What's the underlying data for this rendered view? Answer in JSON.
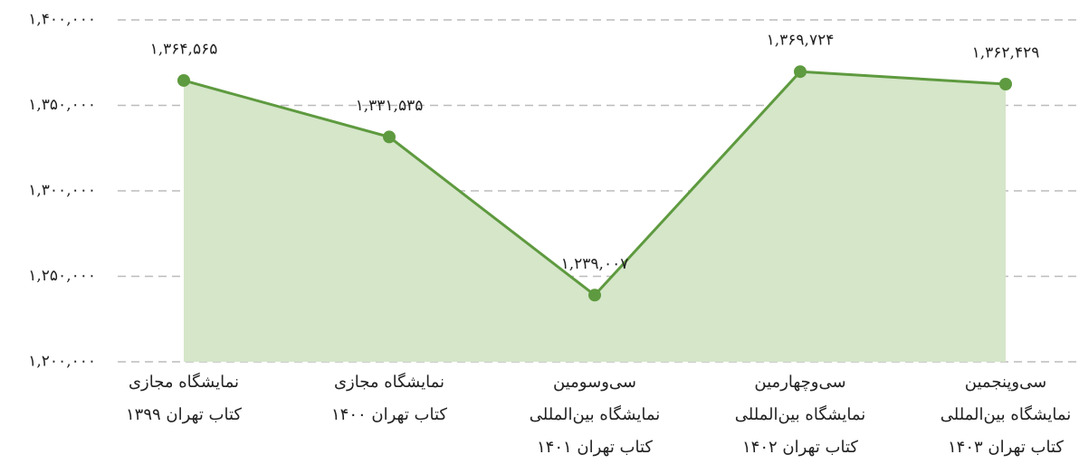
{
  "chart_data": {
    "type": "area",
    "categories": [
      "نمایشگاه مجازی\nکتاب تهران ۱۳۹۹",
      "نمایشگاه مجازی\nکتاب تهران ۱۴۰۰",
      "سی‌وسومین\nنمایشگاه بین‌المللی\nکتاب تهران ۱۴۰۱",
      "سی‌وچهارمین\nنمایشگاه بین‌المللی\nکتاب تهران ۱۴۰۲",
      "سی‌وپنجمین\nنمایشگاه بین‌المللی\nکتاب تهران ۱۴۰۳"
    ],
    "values": [
      1364565,
      1331535,
      1239007,
      1369724,
      1362429
    ],
    "value_labels": [
      "۱,۳۶۴,۵۶۵",
      "۱,۳۳۱,۵۳۵",
      "۱,۲۳۹,۰۰۷",
      "۱,۳۶۹,۷۲۴",
      "۱,۳۶۲,۴۲۹"
    ],
    "color": "#5e9a3f",
    "fill_color": "#d5e6c9",
    "ylim": [
      1200000,
      1400000
    ],
    "yticks": [
      {
        "value": 1200000,
        "label": "۱,۲۰۰,۰۰۰"
      },
      {
        "value": 1250000,
        "label": "۱,۲۵۰,۰۰۰"
      },
      {
        "value": 1300000,
        "label": "۱,۳۰۰,۰۰۰"
      },
      {
        "value": 1350000,
        "label": "۱,۳۵۰,۰۰۰"
      },
      {
        "value": 1400000,
        "label": "۱,۴۰۰,۰۰۰"
      }
    ],
    "grid": true
  }
}
